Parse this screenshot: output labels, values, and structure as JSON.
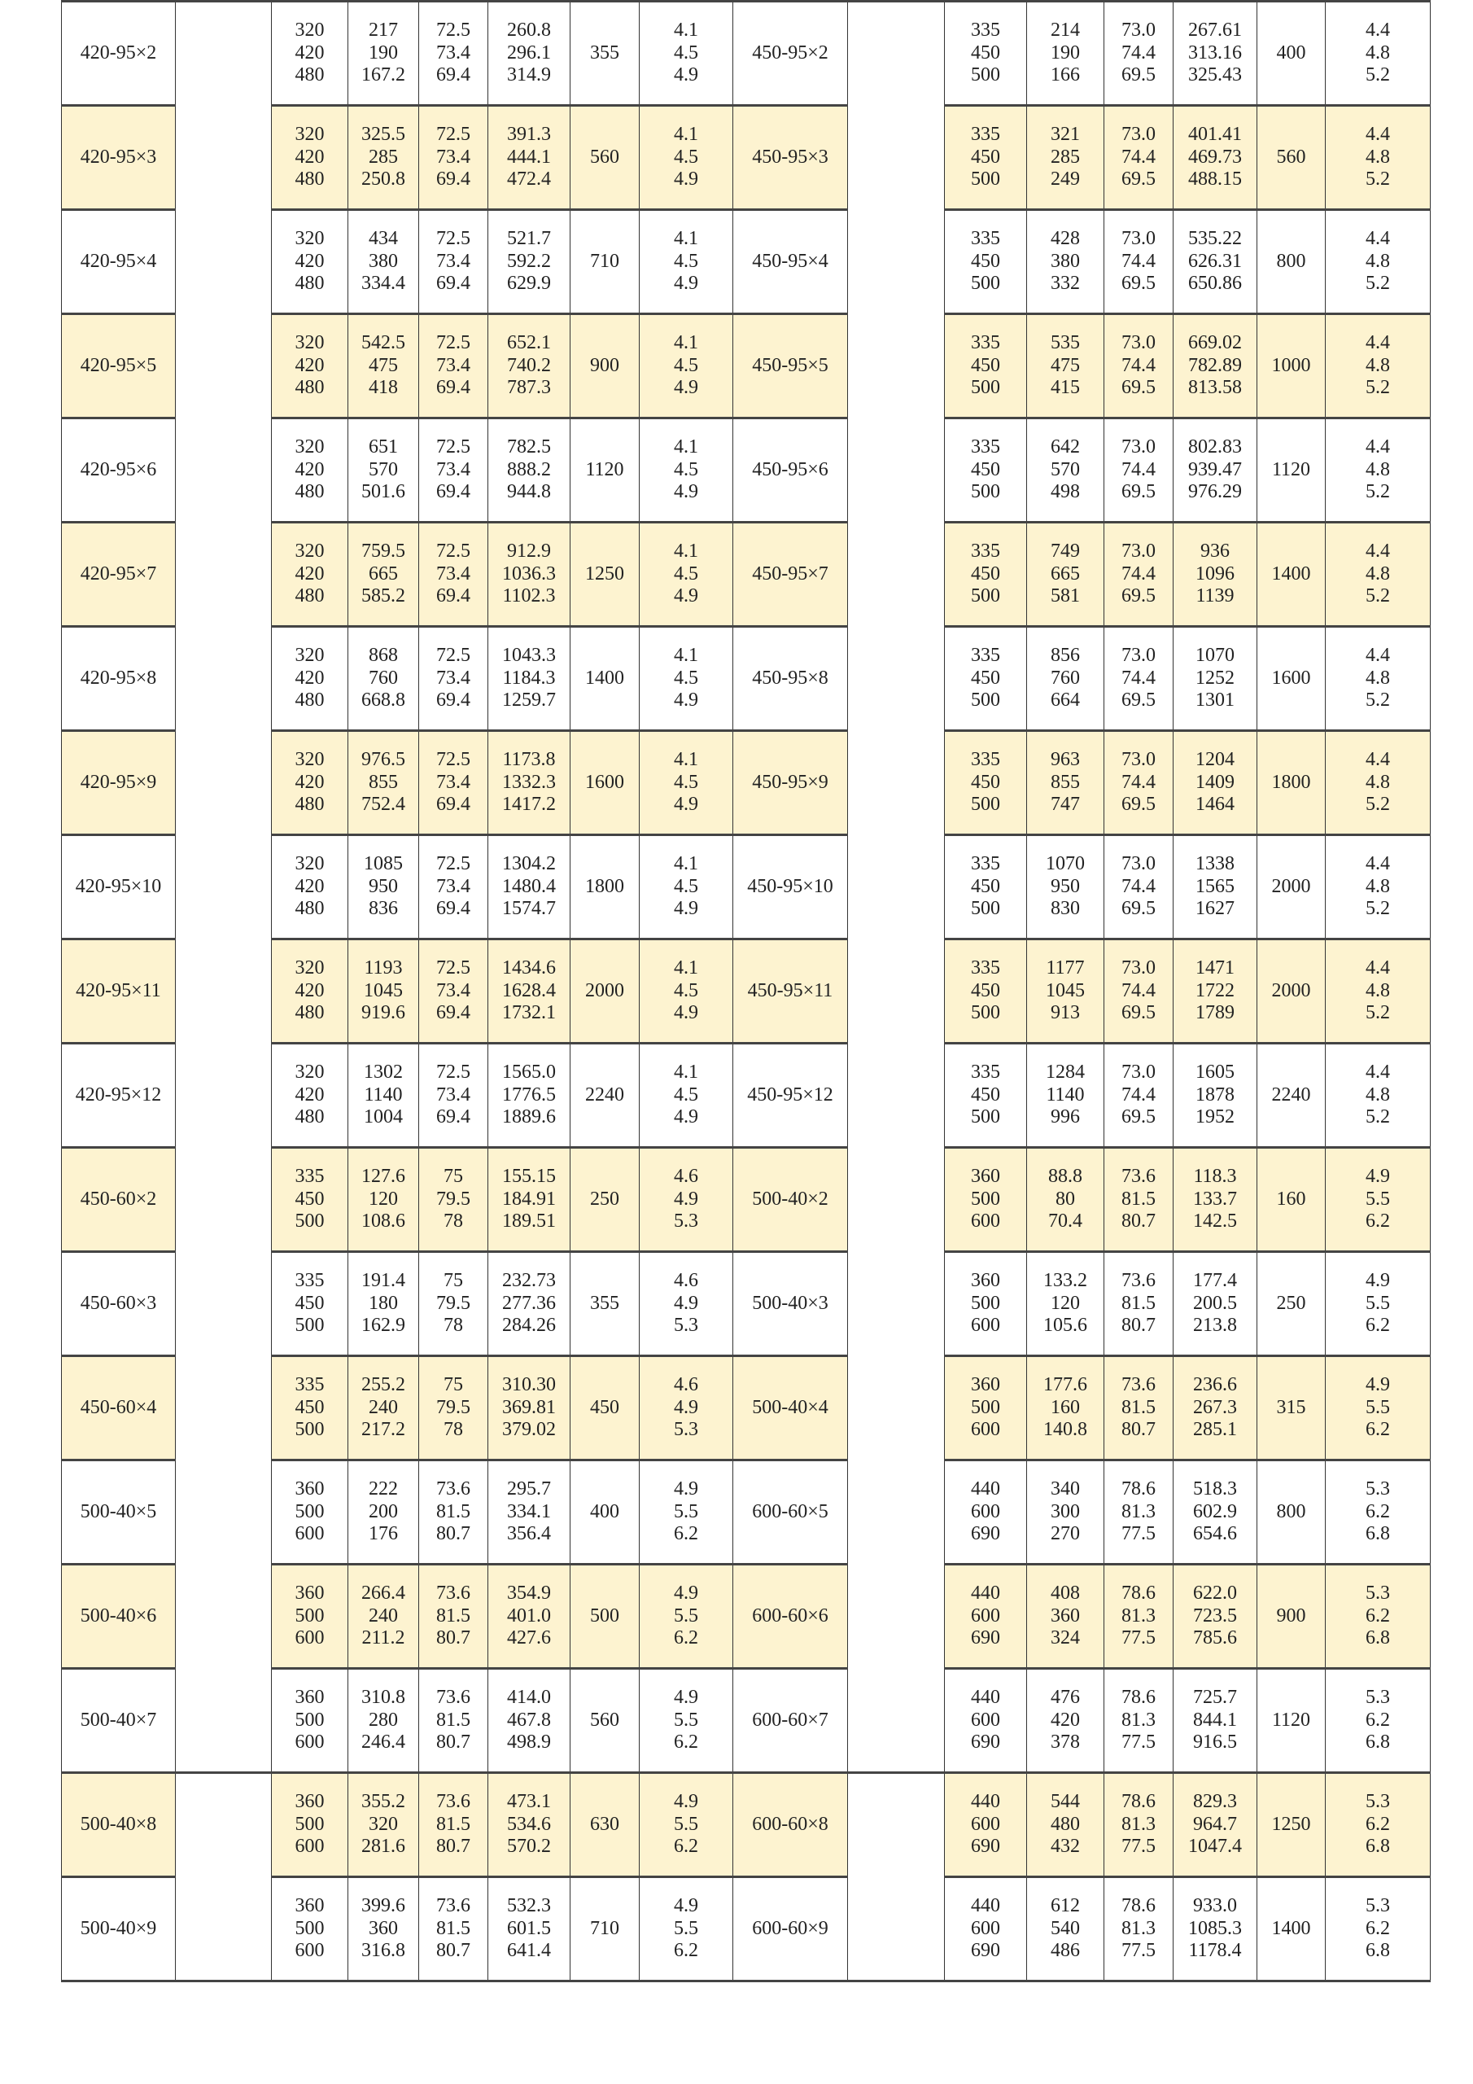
{
  "rows": [
    {
      "left": {
        "model": "420-95×2",
        "flow": [
          "320",
          "420",
          "480"
        ],
        "head": [
          "217",
          "190",
          "167.2"
        ],
        "eff": [
          "72.5",
          "73.4",
          "69.4"
        ],
        "power": [
          "260.8",
          "296.1",
          "314.9"
        ],
        "motor": "355",
        "npsh": [
          "4.1",
          "4.5",
          "4.9"
        ]
      },
      "right": {
        "model": "450-95×2",
        "flow": [
          "335",
          "450",
          "500"
        ],
        "head": [
          "214",
          "190",
          "166"
        ],
        "eff": [
          "73.0",
          "74.4",
          "69.5"
        ],
        "power": [
          "267.61",
          "313.16",
          "325.43"
        ],
        "motor": "400",
        "npsh": [
          "4.4",
          "4.8",
          "5.2"
        ]
      }
    },
    {
      "left": {
        "model": "420-95×3",
        "flow": [
          "320",
          "420",
          "480"
        ],
        "head": [
          "325.5",
          "285",
          "250.8"
        ],
        "eff": [
          "72.5",
          "73.4",
          "69.4"
        ],
        "power": [
          "391.3",
          "444.1",
          "472.4"
        ],
        "motor": "560",
        "npsh": [
          "4.1",
          "4.5",
          "4.9"
        ]
      },
      "right": {
        "model": "450-95×3",
        "flow": [
          "335",
          "450",
          "500"
        ],
        "head": [
          "321",
          "285",
          "249"
        ],
        "eff": [
          "73.0",
          "74.4",
          "69.5"
        ],
        "power": [
          "401.41",
          "469.73",
          "488.15"
        ],
        "motor": "560",
        "npsh": [
          "4.4",
          "4.8",
          "5.2"
        ]
      }
    },
    {
      "left": {
        "model": "420-95×4",
        "flow": [
          "320",
          "420",
          "480"
        ],
        "head": [
          "434",
          "380",
          "334.4"
        ],
        "eff": [
          "72.5",
          "73.4",
          "69.4"
        ],
        "power": [
          "521.7",
          "592.2",
          "629.9"
        ],
        "motor": "710",
        "npsh": [
          "4.1",
          "4.5",
          "4.9"
        ]
      },
      "right": {
        "model": "450-95×4",
        "flow": [
          "335",
          "450",
          "500"
        ],
        "head": [
          "428",
          "380",
          "332"
        ],
        "eff": [
          "73.0",
          "74.4",
          "69.5"
        ],
        "power": [
          "535.22",
          "626.31",
          "650.86"
        ],
        "motor": "800",
        "npsh": [
          "4.4",
          "4.8",
          "5.2"
        ]
      }
    },
    {
      "left": {
        "model": "420-95×5",
        "flow": [
          "320",
          "420",
          "480"
        ],
        "head": [
          "542.5",
          "475",
          "418"
        ],
        "eff": [
          "72.5",
          "73.4",
          "69.4"
        ],
        "power": [
          "652.1",
          "740.2",
          "787.3"
        ],
        "motor": "900",
        "npsh": [
          "4.1",
          "4.5",
          "4.9"
        ]
      },
      "right": {
        "model": "450-95×5",
        "flow": [
          "335",
          "450",
          "500"
        ],
        "head": [
          "535",
          "475",
          "415"
        ],
        "eff": [
          "73.0",
          "74.4",
          "69.5"
        ],
        "power": [
          "669.02",
          "782.89",
          "813.58"
        ],
        "motor": "1000",
        "npsh": [
          "4.4",
          "4.8",
          "5.2"
        ]
      }
    },
    {
      "left": {
        "model": "420-95×6",
        "flow": [
          "320",
          "420",
          "480"
        ],
        "head": [
          "651",
          "570",
          "501.6"
        ],
        "eff": [
          "72.5",
          "73.4",
          "69.4"
        ],
        "power": [
          "782.5",
          "888.2",
          "944.8"
        ],
        "motor": "1120",
        "npsh": [
          "4.1",
          "4.5",
          "4.9"
        ]
      },
      "right": {
        "model": "450-95×6",
        "flow": [
          "335",
          "450",
          "500"
        ],
        "head": [
          "642",
          "570",
          "498"
        ],
        "eff": [
          "73.0",
          "74.4",
          "69.5"
        ],
        "power": [
          "802.83",
          "939.47",
          "976.29"
        ],
        "motor": "1120",
        "npsh": [
          "4.4",
          "4.8",
          "5.2"
        ]
      }
    },
    {
      "left": {
        "model": "420-95×7",
        "flow": [
          "320",
          "420",
          "480"
        ],
        "head": [
          "759.5",
          "665",
          "585.2"
        ],
        "eff": [
          "72.5",
          "73.4",
          "69.4"
        ],
        "power": [
          "912.9",
          "1036.3",
          "1102.3"
        ],
        "motor": "1250",
        "npsh": [
          "4.1",
          "4.5",
          "4.9"
        ]
      },
      "right": {
        "model": "450-95×7",
        "flow": [
          "335",
          "450",
          "500"
        ],
        "head": [
          "749",
          "665",
          "581"
        ],
        "eff": [
          "73.0",
          "74.4",
          "69.5"
        ],
        "power": [
          "936",
          "1096",
          "1139"
        ],
        "motor": "1400",
        "npsh": [
          "4.4",
          "4.8",
          "5.2"
        ]
      }
    },
    {
      "left": {
        "model": "420-95×8",
        "flow": [
          "320",
          "420",
          "480"
        ],
        "head": [
          "868",
          "760",
          "668.8"
        ],
        "eff": [
          "72.5",
          "73.4",
          "69.4"
        ],
        "power": [
          "1043.3",
          "1184.3",
          "1259.7"
        ],
        "motor": "1400",
        "npsh": [
          "4.1",
          "4.5",
          "4.9"
        ]
      },
      "right": {
        "model": "450-95×8",
        "flow": [
          "335",
          "450",
          "500"
        ],
        "head": [
          "856",
          "760",
          "664"
        ],
        "eff": [
          "73.0",
          "74.4",
          "69.5"
        ],
        "power": [
          "1070",
          "1252",
          "1301"
        ],
        "motor": "1600",
        "npsh": [
          "4.4",
          "4.8",
          "5.2"
        ]
      }
    },
    {
      "left": {
        "model": "420-95×9",
        "flow": [
          "320",
          "420",
          "480"
        ],
        "head": [
          "976.5",
          "855",
          "752.4"
        ],
        "eff": [
          "72.5",
          "73.4",
          "69.4"
        ],
        "power": [
          "1173.8",
          "1332.3",
          "1417.2"
        ],
        "motor": "1600",
        "npsh": [
          "4.1",
          "4.5",
          "4.9"
        ]
      },
      "right": {
        "model": "450-95×9",
        "flow": [
          "335",
          "450",
          "500"
        ],
        "head": [
          "963",
          "855",
          "747"
        ],
        "eff": [
          "73.0",
          "74.4",
          "69.5"
        ],
        "power": [
          "1204",
          "1409",
          "1464"
        ],
        "motor": "1800",
        "npsh": [
          "4.4",
          "4.8",
          "5.2"
        ]
      }
    },
    {
      "left": {
        "model": "420-95×10",
        "flow": [
          "320",
          "420",
          "480"
        ],
        "head": [
          "1085",
          "950",
          "836"
        ],
        "eff": [
          "72.5",
          "73.4",
          "69.4"
        ],
        "power": [
          "1304.2",
          "1480.4",
          "1574.7"
        ],
        "motor": "1800",
        "npsh": [
          "4.1",
          "4.5",
          "4.9"
        ]
      },
      "right": {
        "model": "450-95×10",
        "flow": [
          "335",
          "450",
          "500"
        ],
        "head": [
          "1070",
          "950",
          "830"
        ],
        "eff": [
          "73.0",
          "74.4",
          "69.5"
        ],
        "power": [
          "1338",
          "1565",
          "1627"
        ],
        "motor": "2000",
        "npsh": [
          "4.4",
          "4.8",
          "5.2"
        ]
      }
    },
    {
      "left": {
        "model": "420-95×11",
        "flow": [
          "320",
          "420",
          "480"
        ],
        "head": [
          "1193",
          "1045",
          "919.6"
        ],
        "eff": [
          "72.5",
          "73.4",
          "69.4"
        ],
        "power": [
          "1434.6",
          "1628.4",
          "1732.1"
        ],
        "motor": "2000",
        "npsh": [
          "4.1",
          "4.5",
          "4.9"
        ]
      },
      "right": {
        "model": "450-95×11",
        "flow": [
          "335",
          "450",
          "500"
        ],
        "head": [
          "1177",
          "1045",
          "913"
        ],
        "eff": [
          "73.0",
          "74.4",
          "69.5"
        ],
        "power": [
          "1471",
          "1722",
          "1789"
        ],
        "motor": "2000",
        "npsh": [
          "4.4",
          "4.8",
          "5.2"
        ]
      }
    },
    {
      "left": {
        "model": "420-95×12",
        "flow": [
          "320",
          "420",
          "480"
        ],
        "head": [
          "1302",
          "1140",
          "1004"
        ],
        "eff": [
          "72.5",
          "73.4",
          "69.4"
        ],
        "power": [
          "1565.0",
          "1776.5",
          "1889.6"
        ],
        "motor": "2240",
        "npsh": [
          "4.1",
          "4.5",
          "4.9"
        ]
      },
      "right": {
        "model": "450-95×12",
        "flow": [
          "335",
          "450",
          "500"
        ],
        "head": [
          "1284",
          "1140",
          "996"
        ],
        "eff": [
          "73.0",
          "74.4",
          "69.5"
        ],
        "power": [
          "1605",
          "1878",
          "1952"
        ],
        "motor": "2240",
        "npsh": [
          "4.4",
          "4.8",
          "5.2"
        ]
      }
    },
    {
      "left": {
        "model": "450-60×2",
        "flow": [
          "335",
          "450",
          "500"
        ],
        "head": [
          "127.6",
          "120",
          "108.6"
        ],
        "eff": [
          "75",
          "79.5",
          "78"
        ],
        "power": [
          "155.15",
          "184.91",
          "189.51"
        ],
        "motor": "250",
        "npsh": [
          "4.6",
          "4.9",
          "5.3"
        ]
      },
      "right": {
        "model": "500-40×2",
        "flow": [
          "360",
          "500",
          "600"
        ],
        "head": [
          "88.8",
          "80",
          "70.4"
        ],
        "eff": [
          "73.6",
          "81.5",
          "80.7"
        ],
        "power": [
          "118.3",
          "133.7",
          "142.5"
        ],
        "motor": "160",
        "npsh": [
          "4.9",
          "5.5",
          "6.2"
        ]
      }
    },
    {
      "left": {
        "model": "450-60×3",
        "flow": [
          "335",
          "450",
          "500"
        ],
        "head": [
          "191.4",
          "180",
          "162.9"
        ],
        "eff": [
          "75",
          "79.5",
          "78"
        ],
        "power": [
          "232.73",
          "277.36",
          "284.26"
        ],
        "motor": "355",
        "npsh": [
          "4.6",
          "4.9",
          "5.3"
        ]
      },
      "right": {
        "model": "500-40×3",
        "flow": [
          "360",
          "500",
          "600"
        ],
        "head": [
          "133.2",
          "120",
          "105.6"
        ],
        "eff": [
          "73.6",
          "81.5",
          "80.7"
        ],
        "power": [
          "177.4",
          "200.5",
          "213.8"
        ],
        "motor": "250",
        "npsh": [
          "4.9",
          "5.5",
          "6.2"
        ]
      }
    },
    {
      "left": {
        "model": "450-60×4",
        "flow": [
          "335",
          "450",
          "500"
        ],
        "head": [
          "255.2",
          "240",
          "217.2"
        ],
        "eff": [
          "75",
          "79.5",
          "78"
        ],
        "power": [
          "310.30",
          "369.81",
          "379.02"
        ],
        "motor": "450",
        "npsh": [
          "4.6",
          "4.9",
          "5.3"
        ]
      },
      "right": {
        "model": "500-40×4",
        "flow": [
          "360",
          "500",
          "600"
        ],
        "head": [
          "177.6",
          "160",
          "140.8"
        ],
        "eff": [
          "73.6",
          "81.5",
          "80.7"
        ],
        "power": [
          "236.6",
          "267.3",
          "285.1"
        ],
        "motor": "315",
        "npsh": [
          "4.9",
          "5.5",
          "6.2"
        ]
      }
    },
    {
      "left": {
        "model": "500-40×5",
        "flow": [
          "360",
          "500",
          "600"
        ],
        "head": [
          "222",
          "200",
          "176"
        ],
        "eff": [
          "73.6",
          "81.5",
          "80.7"
        ],
        "power": [
          "295.7",
          "334.1",
          "356.4"
        ],
        "motor": "400",
        "npsh": [
          "4.9",
          "5.5",
          "6.2"
        ]
      },
      "right": {
        "model": "600-60×5",
        "flow": [
          "440",
          "600",
          "690"
        ],
        "head": [
          "340",
          "300",
          "270"
        ],
        "eff": [
          "78.6",
          "81.3",
          "77.5"
        ],
        "power": [
          "518.3",
          "602.9",
          "654.6"
        ],
        "motor": "800",
        "npsh": [
          "5.3",
          "6.2",
          "6.8"
        ]
      }
    },
    {
      "left": {
        "model": "500-40×6",
        "flow": [
          "360",
          "500",
          "600"
        ],
        "head": [
          "266.4",
          "240",
          "211.2"
        ],
        "eff": [
          "73.6",
          "81.5",
          "80.7"
        ],
        "power": [
          "354.9",
          "401.0",
          "427.6"
        ],
        "motor": "500",
        "npsh": [
          "4.9",
          "5.5",
          "6.2"
        ]
      },
      "right": {
        "model": "600-60×6",
        "flow": [
          "440",
          "600",
          "690"
        ],
        "head": [
          "408",
          "360",
          "324"
        ],
        "eff": [
          "78.6",
          "81.3",
          "77.5"
        ],
        "power": [
          "622.0",
          "723.5",
          "785.6"
        ],
        "motor": "900",
        "npsh": [
          "5.3",
          "6.2",
          "6.8"
        ]
      }
    },
    {
      "left": {
        "model": "500-40×7",
        "flow": [
          "360",
          "500",
          "600"
        ],
        "head": [
          "310.8",
          "280",
          "246.4"
        ],
        "eff": [
          "73.6",
          "81.5",
          "80.7"
        ],
        "power": [
          "414.0",
          "467.8",
          "498.9"
        ],
        "motor": "560",
        "npsh": [
          "4.9",
          "5.5",
          "6.2"
        ]
      },
      "right": {
        "model": "600-60×7",
        "flow": [
          "440",
          "600",
          "690"
        ],
        "head": [
          "476",
          "420",
          "378"
        ],
        "eff": [
          "78.6",
          "81.3",
          "77.5"
        ],
        "power": [
          "725.7",
          "844.1",
          "916.5"
        ],
        "motor": "1120",
        "npsh": [
          "5.3",
          "6.2",
          "6.8"
        ]
      }
    },
    {
      "left": {
        "model": "500-40×8",
        "flow": [
          "360",
          "500",
          "600"
        ],
        "head": [
          "355.2",
          "320",
          "281.6"
        ],
        "eff": [
          "73.6",
          "81.5",
          "80.7"
        ],
        "power": [
          "473.1",
          "534.6",
          "570.2"
        ],
        "motor": "630",
        "npsh": [
          "4.9",
          "5.5",
          "6.2"
        ]
      },
      "right": {
        "model": "600-60×8",
        "flow": [
          "440",
          "600",
          "690"
        ],
        "head": [
          "544",
          "480",
          "432"
        ],
        "eff": [
          "78.6",
          "81.3",
          "77.5"
        ],
        "power": [
          "829.3",
          "964.7",
          "1047.4"
        ],
        "motor": "1250",
        "npsh": [
          "5.3",
          "6.2",
          "6.8"
        ]
      }
    },
    {
      "left": {
        "model": "500-40×9",
        "flow": [
          "360",
          "500",
          "600"
        ],
        "head": [
          "399.6",
          "360",
          "316.8"
        ],
        "eff": [
          "73.6",
          "81.5",
          "80.7"
        ],
        "power": [
          "532.3",
          "601.5",
          "641.4"
        ],
        "motor": "710",
        "npsh": [
          "4.9",
          "5.5",
          "6.2"
        ]
      },
      "right": {
        "model": "600-60×9",
        "flow": [
          "440",
          "600",
          "690"
        ],
        "head": [
          "612",
          "540",
          "486"
        ],
        "eff": [
          "78.6",
          "81.3",
          "77.5"
        ],
        "power": [
          "933.0",
          "1085.3",
          "1178.4"
        ],
        "motor": "1400",
        "npsh": [
          "5.3",
          "6.2",
          "6.8"
        ]
      }
    }
  ],
  "colors": {
    "alt_row_fill": "#fdf3d0",
    "border": "#333333"
  }
}
